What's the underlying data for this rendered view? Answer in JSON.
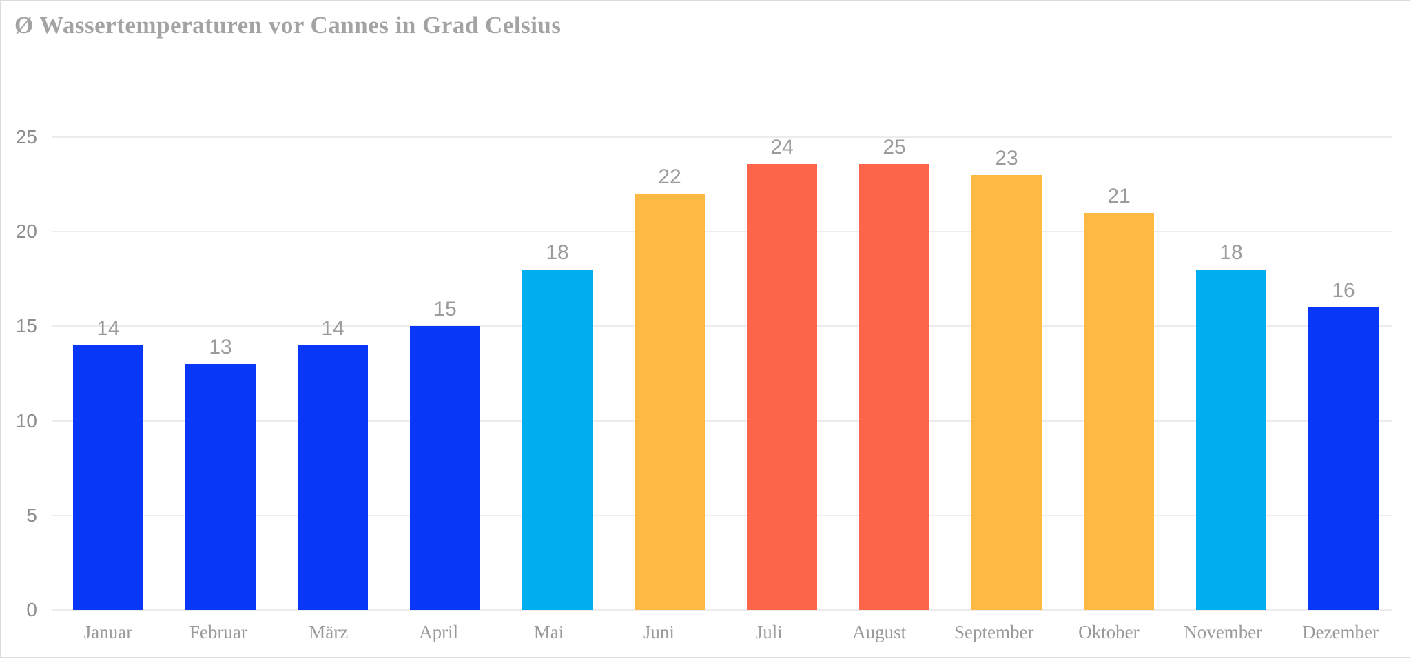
{
  "chart_data": {
    "type": "bar",
    "title": "Ø Wassertemperaturen vor Cannes in Grad Celsius",
    "categories": [
      "Januar",
      "Februar",
      "März",
      "April",
      "Mai",
      "Juni",
      "Juli",
      "August",
      "September",
      "Oktober",
      "November",
      "Dezember"
    ],
    "values": [
      14,
      13,
      14,
      15,
      18,
      22,
      24,
      25,
      23,
      21,
      18,
      16
    ],
    "bar_colors": [
      "#0837f7",
      "#0837f7",
      "#0837f7",
      "#0837f7",
      "#00adef",
      "#fdb944",
      "#fc6549",
      "#fc6549",
      "#fdb944",
      "#fdb944",
      "#00adef",
      "#0837f7"
    ],
    "value_labels": [
      "14",
      "13",
      "14",
      "15",
      "18",
      "22",
      "24",
      "25",
      "23",
      "21",
      "18",
      "16"
    ],
    "xlabel": "",
    "ylabel": "",
    "ylim": [
      0,
      25
    ],
    "y_ticks": [
      0,
      5,
      10,
      15,
      20,
      25
    ],
    "y_tick_labels": [
      "0",
      "5",
      "10",
      "15",
      "20",
      "25"
    ],
    "grid": true,
    "legend": false,
    "data_labels": true,
    "colors": {
      "blue": "#0837f7",
      "cyan": "#00adef",
      "orange": "#fdb944",
      "red": "#fc6549",
      "title_text": "#a3a3a3",
      "axis_text": "#8e8e8e",
      "value_text": "#9b9b9b",
      "month_text": "#9a9a9a",
      "gridline": "#ececec",
      "frame_border": "#dcdcdc"
    }
  }
}
